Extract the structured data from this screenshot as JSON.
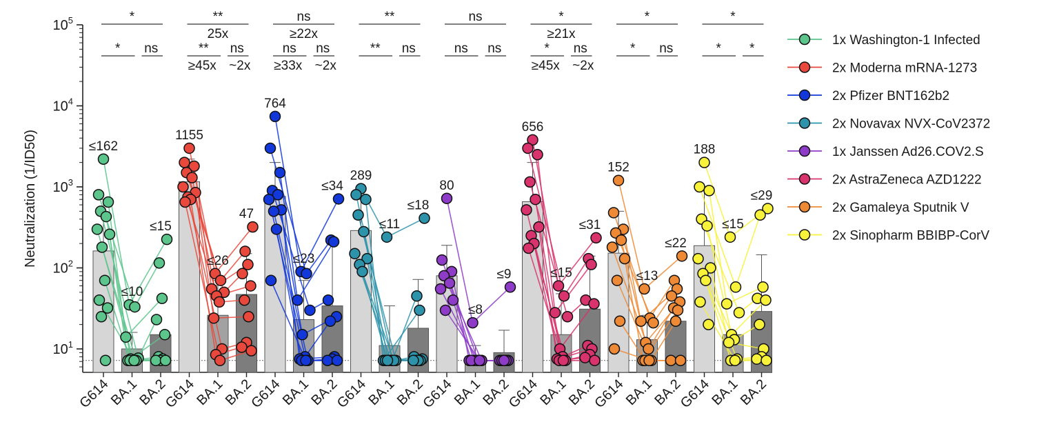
{
  "chart_data": {
    "type": "bar",
    "scale": "log",
    "ylabel": "Neutralization (1/ID50)",
    "ylim": [
      6,
      100000
    ],
    "y_ticks": [
      {
        "value": 10,
        "base": "10",
        "exp": "1"
      },
      {
        "value": 100,
        "base": "10",
        "exp": "2"
      },
      {
        "value": 1000,
        "base": "10",
        "exp": "3"
      },
      {
        "value": 10000,
        "base": "10",
        "exp": "4"
      },
      {
        "value": 100000,
        "base": "10",
        "exp": "5"
      }
    ],
    "limit_of_detection": 7.2,
    "categories": [
      "G614",
      "BA.1",
      "BA.2"
    ],
    "groups": [
      {
        "name": "1x Washington-1 Infected",
        "color": "#5cc58c",
        "bars": [
          {
            "variant": "G614",
            "value": 162,
            "label": "≤162",
            "err": 700,
            "points": [
              2200,
              800,
              650,
              500,
              430,
              300,
              260,
              180,
              70,
              40,
              32,
              25,
              7.2
            ]
          },
          {
            "variant": "BA.1",
            "value": 10,
            "label": "≤10",
            "err": 16,
            "points": [
              35,
              33,
              14,
              7.7,
              7.5,
              7.2,
              7.2,
              7.2,
              7.2,
              7.2
            ]
          },
          {
            "variant": "BA.2",
            "value": 15,
            "label": "≤15",
            "err": 0,
            "points": [
              225,
              115,
              42,
              23,
              15,
              8,
              7.5,
              7.2,
              7.2,
              7.2
            ]
          }
        ]
      },
      {
        "name": "2x Moderna mRNA-1273",
        "color": "#e8493c",
        "bars": [
          {
            "variant": "G614",
            "value": 1155,
            "label": "1155",
            "err": 2200,
            "points": [
              3000,
              2000,
              1800,
              1500,
              1300,
              1000,
              850,
              750,
              700,
              650
            ]
          },
          {
            "variant": "BA.1",
            "value": 26,
            "label": "≤26",
            "err": 70,
            "points": [
              85,
              70,
              55,
              50,
              45,
              38,
              24,
              10,
              8.5,
              7.2
            ]
          },
          {
            "variant": "BA.2",
            "value": 47,
            "label": "47",
            "err": 150,
            "points": [
              320,
              160,
              110,
              85,
              60,
              40,
              25,
              12,
              10.5,
              9.5
            ]
          }
        ]
      },
      {
        "name": "2x Pfizer BNT162b2",
        "color": "#1238d9",
        "bars": [
          {
            "variant": "G614",
            "value": 764,
            "label": "764",
            "err": 2000,
            "points": [
              7400,
              3000,
              1500,
              900,
              800,
              700,
              520,
              500,
              300,
              70
            ]
          },
          {
            "variant": "BA.1",
            "value": 23,
            "label": "≤23",
            "err": 70,
            "points": [
              90,
              85,
              40,
              30,
              15,
              8,
              7.5,
              7.2,
              7.2,
              7.2
            ]
          },
          {
            "variant": "BA.2",
            "value": 34,
            "label": "≤34",
            "err": 210,
            "points": [
              710,
              220,
              210,
              40,
              25,
              22,
              8,
              7.5,
              7.2,
              7.2
            ]
          }
        ]
      },
      {
        "name": "2x Novavax NVX-CoV2372",
        "color": "#2d93aa",
        "bars": [
          {
            "variant": "G614",
            "value": 289,
            "label": "289",
            "err": 700,
            "points": [
              950,
              800,
              700,
              450,
              280,
              150,
              130,
              110,
              90
            ]
          },
          {
            "variant": "BA.1",
            "value": 11,
            "label": "≤11",
            "err": 34,
            "points": [
              240,
              7.2,
              7.2,
              7.2,
              7.2,
              7.2,
              7.2,
              7.2,
              7.2
            ]
          },
          {
            "variant": "BA.2",
            "value": 18,
            "label": "≤18",
            "err": 72,
            "points": [
              410,
              45,
              30,
              8,
              7.5,
              7.2,
              7.2,
              7.2,
              7.2
            ]
          }
        ]
      },
      {
        "name": "1x Janssen Ad26.COV2.S",
        "color": "#8e3cc8",
        "bars": [
          {
            "variant": "G614",
            "value": 80,
            "label": "80",
            "err": 190,
            "points": [
              720,
              125,
              90,
              80,
              65,
              55,
              40,
              30
            ]
          },
          {
            "variant": "BA.1",
            "value": 8,
            "label": "≤8",
            "err": 11,
            "points": [
              21,
              7.2,
              7.2,
              7.2,
              7.2,
              7.2,
              7.2,
              7.2
            ]
          },
          {
            "variant": "BA.2",
            "value": 9,
            "label": "≤9",
            "err": 17,
            "points": [
              58,
              7.2,
              7.2,
              7.2,
              7.2,
              7.2,
              7.2,
              7.2
            ]
          }
        ]
      },
      {
        "name": "2x AstraZeneca AZD1222",
        "color": "#d8336c",
        "bars": [
          {
            "variant": "G614",
            "value": 656,
            "label": "656",
            "err": 2000,
            "points": [
              3800,
              3000,
              2500,
              1150,
              700,
              520,
              320,
              250,
              200,
              175
            ]
          },
          {
            "variant": "BA.1",
            "value": 15,
            "label": "≤15",
            "err": 48,
            "points": [
              60,
              45,
              28,
              25,
              10,
              8,
              7.5,
              7.2,
              7.2,
              7.2
            ]
          },
          {
            "variant": "BA.2",
            "value": 31,
            "label": "≤31",
            "err": 140,
            "points": [
              235,
              130,
              110,
              40,
              36,
              11,
              10,
              8.5,
              7.8,
              7.2
            ]
          }
        ]
      },
      {
        "name": "2x Gamaleya Sputnik V",
        "color": "#ee8a35",
        "bars": [
          {
            "variant": "G614",
            "value": 152,
            "label": "152",
            "err": 500,
            "points": [
              1200,
              480,
              300,
              270,
              220,
              180,
              130,
              70,
              22,
              10
            ]
          },
          {
            "variant": "BA.1",
            "value": 13,
            "label": "≤13",
            "err": 26,
            "points": [
              55,
              24,
              22,
              21,
              12,
              10,
              7.2,
              7.2,
              7.2,
              7.2
            ]
          },
          {
            "variant": "BA.2",
            "value": 22,
            "label": "≤22",
            "err": 0,
            "points": [
              140,
              70,
              55,
              45,
              38,
              32,
              30,
              22,
              7.2,
              7.2
            ]
          }
        ]
      },
      {
        "name": "2x Sinopharm BBIBP-CorV",
        "color": "#f8f23a",
        "bars": [
          {
            "variant": "G614",
            "value": 188,
            "label": "188",
            "err": 900,
            "points": [
              2000,
              1000,
              900,
              400,
              330,
              130,
              100,
              85,
              70,
              38,
              20
            ]
          },
          {
            "variant": "BA.1",
            "value": 15,
            "label": "≤15",
            "err": 0,
            "points": [
              240,
              58,
              36,
              28,
              15,
              13,
              12,
              7.5,
              7.2,
              7.2
            ]
          },
          {
            "variant": "BA.2",
            "value": 29,
            "label": "≤29",
            "err": 145,
            "points": [
              540,
              450,
              58,
              42,
              40,
              20,
              10,
              8,
              7.5,
              7.2
            ]
          }
        ]
      }
    ],
    "significance": [
      {
        "top": "*",
        "top_fold": "",
        "left": "*",
        "left_fold": "",
        "right": "ns",
        "right_fold": ""
      },
      {
        "top": "**",
        "top_fold": "25x",
        "left": "**",
        "left_fold": "≥45x",
        "right": "ns",
        "right_fold": "~2x"
      },
      {
        "top": "ns",
        "top_fold": "≥22x",
        "left": "ns",
        "left_fold": "≥33x",
        "right": "ns",
        "right_fold": "~2x"
      },
      {
        "top": "**",
        "top_fold": "",
        "left": "**",
        "left_fold": "",
        "right": "ns",
        "right_fold": ""
      },
      {
        "top": "ns",
        "top_fold": "",
        "left": "ns",
        "left_fold": "",
        "right": "ns",
        "right_fold": ""
      },
      {
        "top": "*",
        "top_fold": "≥21x",
        "left": "*",
        "left_fold": "≥45x",
        "right": "ns",
        "right_fold": "~2x"
      },
      {
        "top": "*",
        "top_fold": "",
        "left": "*",
        "left_fold": "",
        "right": "ns",
        "right_fold": ""
      },
      {
        "top": "*",
        "top_fold": "",
        "left": "*",
        "left_fold": "",
        "right": "*",
        "right_fold": ""
      }
    ],
    "legend": [
      {
        "label": "1x Washington-1 Infected",
        "color": "#5cc58c"
      },
      {
        "label": "2x Moderna mRNA-1273",
        "color": "#e8493c"
      },
      {
        "label": "2x Pfizer BNT162b2",
        "color": "#1238d9"
      },
      {
        "label": "2x Novavax NVX-CoV2372",
        "color": "#2d93aa"
      },
      {
        "label": "1x Janssen Ad26.COV2.S",
        "color": "#8e3cc8"
      },
      {
        "label": "2x AstraZeneca AZD1222",
        "color": "#d8336c"
      },
      {
        "label": "2x Gamaleya Sputnik V",
        "color": "#ee8a35"
      },
      {
        "label": "2x Sinopharm BBIBP-CorV",
        "color": "#f8f23a"
      }
    ],
    "bar_colors": {
      "G614": "#d6d6d6",
      "BA.1": "#a2a2a2",
      "BA.2": "#7d7d7d"
    }
  }
}
